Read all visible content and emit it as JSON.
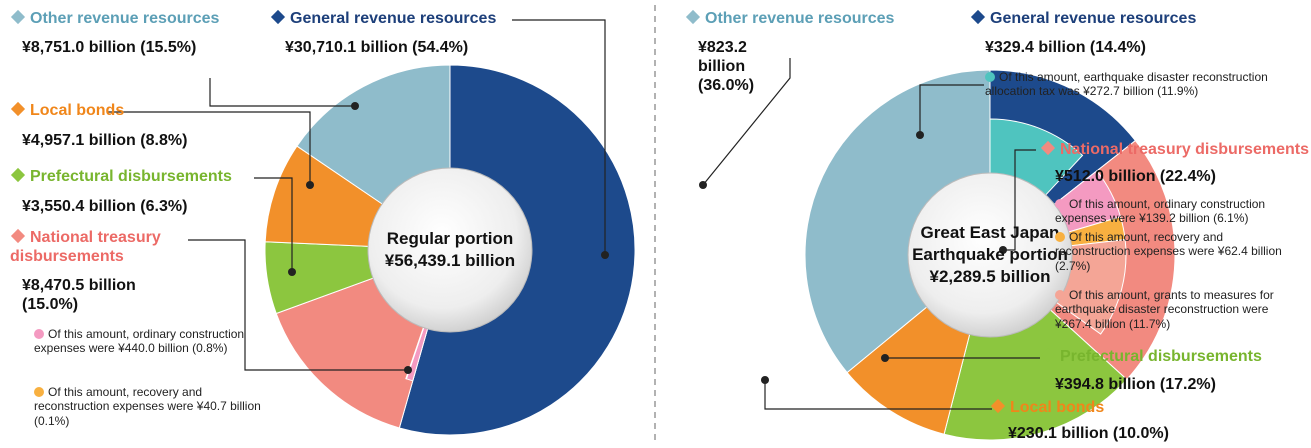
{
  "chart_data": [
    {
      "type": "donut",
      "center_label": "Regular portion",
      "total": 56439.1,
      "total_label": "¥56,439.1 billion",
      "segments": [
        {
          "name": "General revenue resources",
          "color": "#1d4a8c",
          "value": 30710.1,
          "value_label": "¥30,710.1 billion (54.4%)"
        },
        {
          "name": "National treasury disbursements",
          "color": "#f28a80",
          "value": 8470.5,
          "value_label": "¥8,470.5 billion (15.0%)",
          "parts": [
            {
              "label": "Of this amount, ordinary construction expenses were",
              "value": 440.0,
              "value_label": "¥440.0 billion (0.8%)",
              "color": "#f49ac1"
            },
            {
              "label": "Of this amount, recovery and reconstruction expenses were",
              "value": 40.7,
              "value_label": "¥40.7 billion (0.1%)",
              "color": "#f8b040"
            }
          ]
        },
        {
          "name": "Prefectural disbursements",
          "color": "#8cc63f",
          "value": 3550.4,
          "value_label": "¥3,550.4 billion (6.3%)"
        },
        {
          "name": "Local bonds",
          "color": "#f2902a",
          "value": 4957.1,
          "value_label": "¥4,957.1 billion (8.8%)"
        },
        {
          "name": "Other revenue resources",
          "color": "#8fbccb",
          "value": 8751.0,
          "value_label": "¥8,751.0 billion (15.5%)"
        }
      ]
    },
    {
      "type": "donut",
      "center_label": "Great East Japan Earthquake portion",
      "total": 2289.5,
      "total_label": "¥2,289.5 billion",
      "segments": [
        {
          "name": "General revenue resources",
          "color": "#1d4a8c",
          "value": 329.4,
          "value_label": "¥329.4 billion (14.4%)",
          "parts": [
            {
              "label": "Of this amount, earthquake disaster reconstruction allocation tax was",
              "value": 272.7,
              "value_label": "¥272.7 billion (11.9%)",
              "color": "#4fc4bf"
            }
          ]
        },
        {
          "name": "National treasury disbursements",
          "color": "#f28a80",
          "value": 512.0,
          "value_label": "¥512.0 billion (22.4%)",
          "parts": [
            {
              "label": "Of this amount, ordinary construction expenses were",
              "value": 139.2,
              "value_label": "¥139.2 billion (6.1%)",
              "color": "#f49ac1"
            },
            {
              "label": "Of this amount, recovery and reconstruction expenses were",
              "value": 62.4,
              "value_label": "¥62.4 billion (2.7%)",
              "color": "#f8b040"
            },
            {
              "label": "Of this amount, grants to measures for earthquake disaster reconstruction were",
              "value": 267.4,
              "value_label": "¥267.4 billion (11.7%)",
              "color": "#f4a596"
            }
          ]
        },
        {
          "name": "Prefectural disbursements",
          "color": "#8cc63f",
          "value": 394.8,
          "value_label": "¥394.8 billion (17.2%)"
        },
        {
          "name": "Local bonds",
          "color": "#f2902a",
          "value": 230.1,
          "value_label": "¥230.1 billion (10.0%)"
        },
        {
          "name": "Other revenue resources",
          "color": "#8fbccb",
          "value": 823.2,
          "value_label": "¥823.2 billion (36.0%)"
        }
      ]
    }
  ]
}
